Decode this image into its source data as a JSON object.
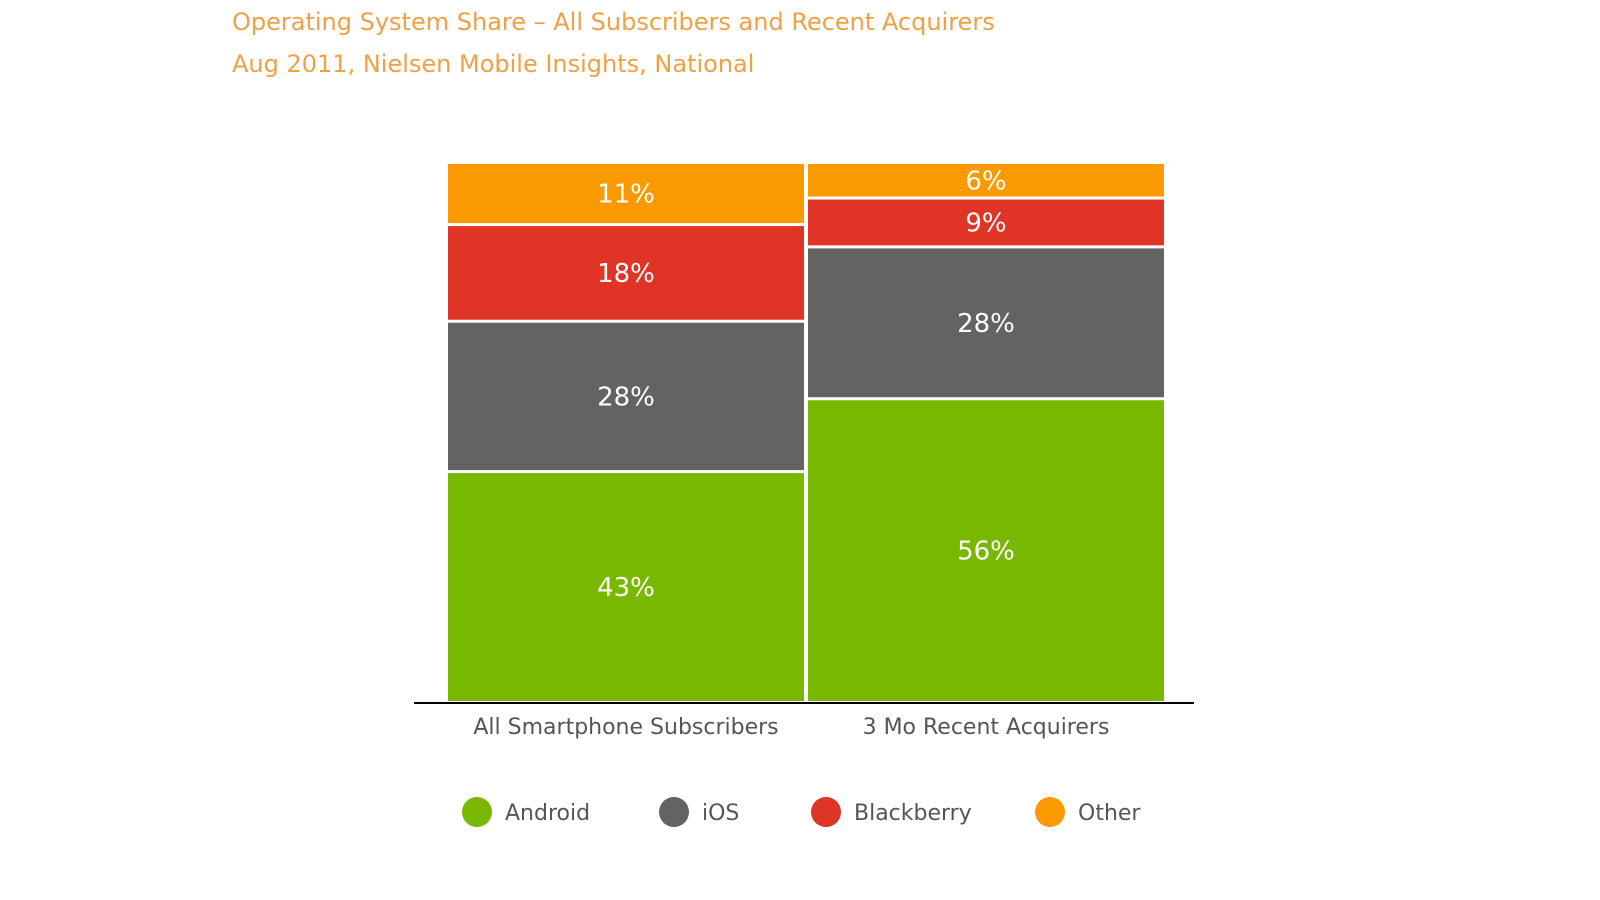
{
  "chart_data": {
    "type": "bar",
    "stacked": true,
    "title": "Operating System Share – All Subscribers and Recent Acquirers",
    "subtitle": "Aug 2011, Nielsen Mobile Insights, National",
    "categories": [
      "All Smartphone Subscribers",
      "3 Mo Recent Acquirers"
    ],
    "series": [
      {
        "name": "Android",
        "color": "#78b800",
        "values": [
          43,
          56
        ],
        "labels": [
          "43%",
          "56%"
        ]
      },
      {
        "name": "iOS",
        "color": "#636363",
        "values": [
          28,
          28
        ],
        "labels": [
          "28%",
          "28%"
        ]
      },
      {
        "name": "Blackberry",
        "color": "#e03426",
        "values": [
          18,
          9
        ],
        "labels": [
          "18%",
          "9%"
        ]
      },
      {
        "name": "Other",
        "color": "#fb9a00",
        "values": [
          11,
          6
        ],
        "labels": [
          "11%",
          "6%"
        ]
      }
    ],
    "ylim": [
      0,
      100
    ],
    "grid": false,
    "legend_position": "bottom"
  }
}
